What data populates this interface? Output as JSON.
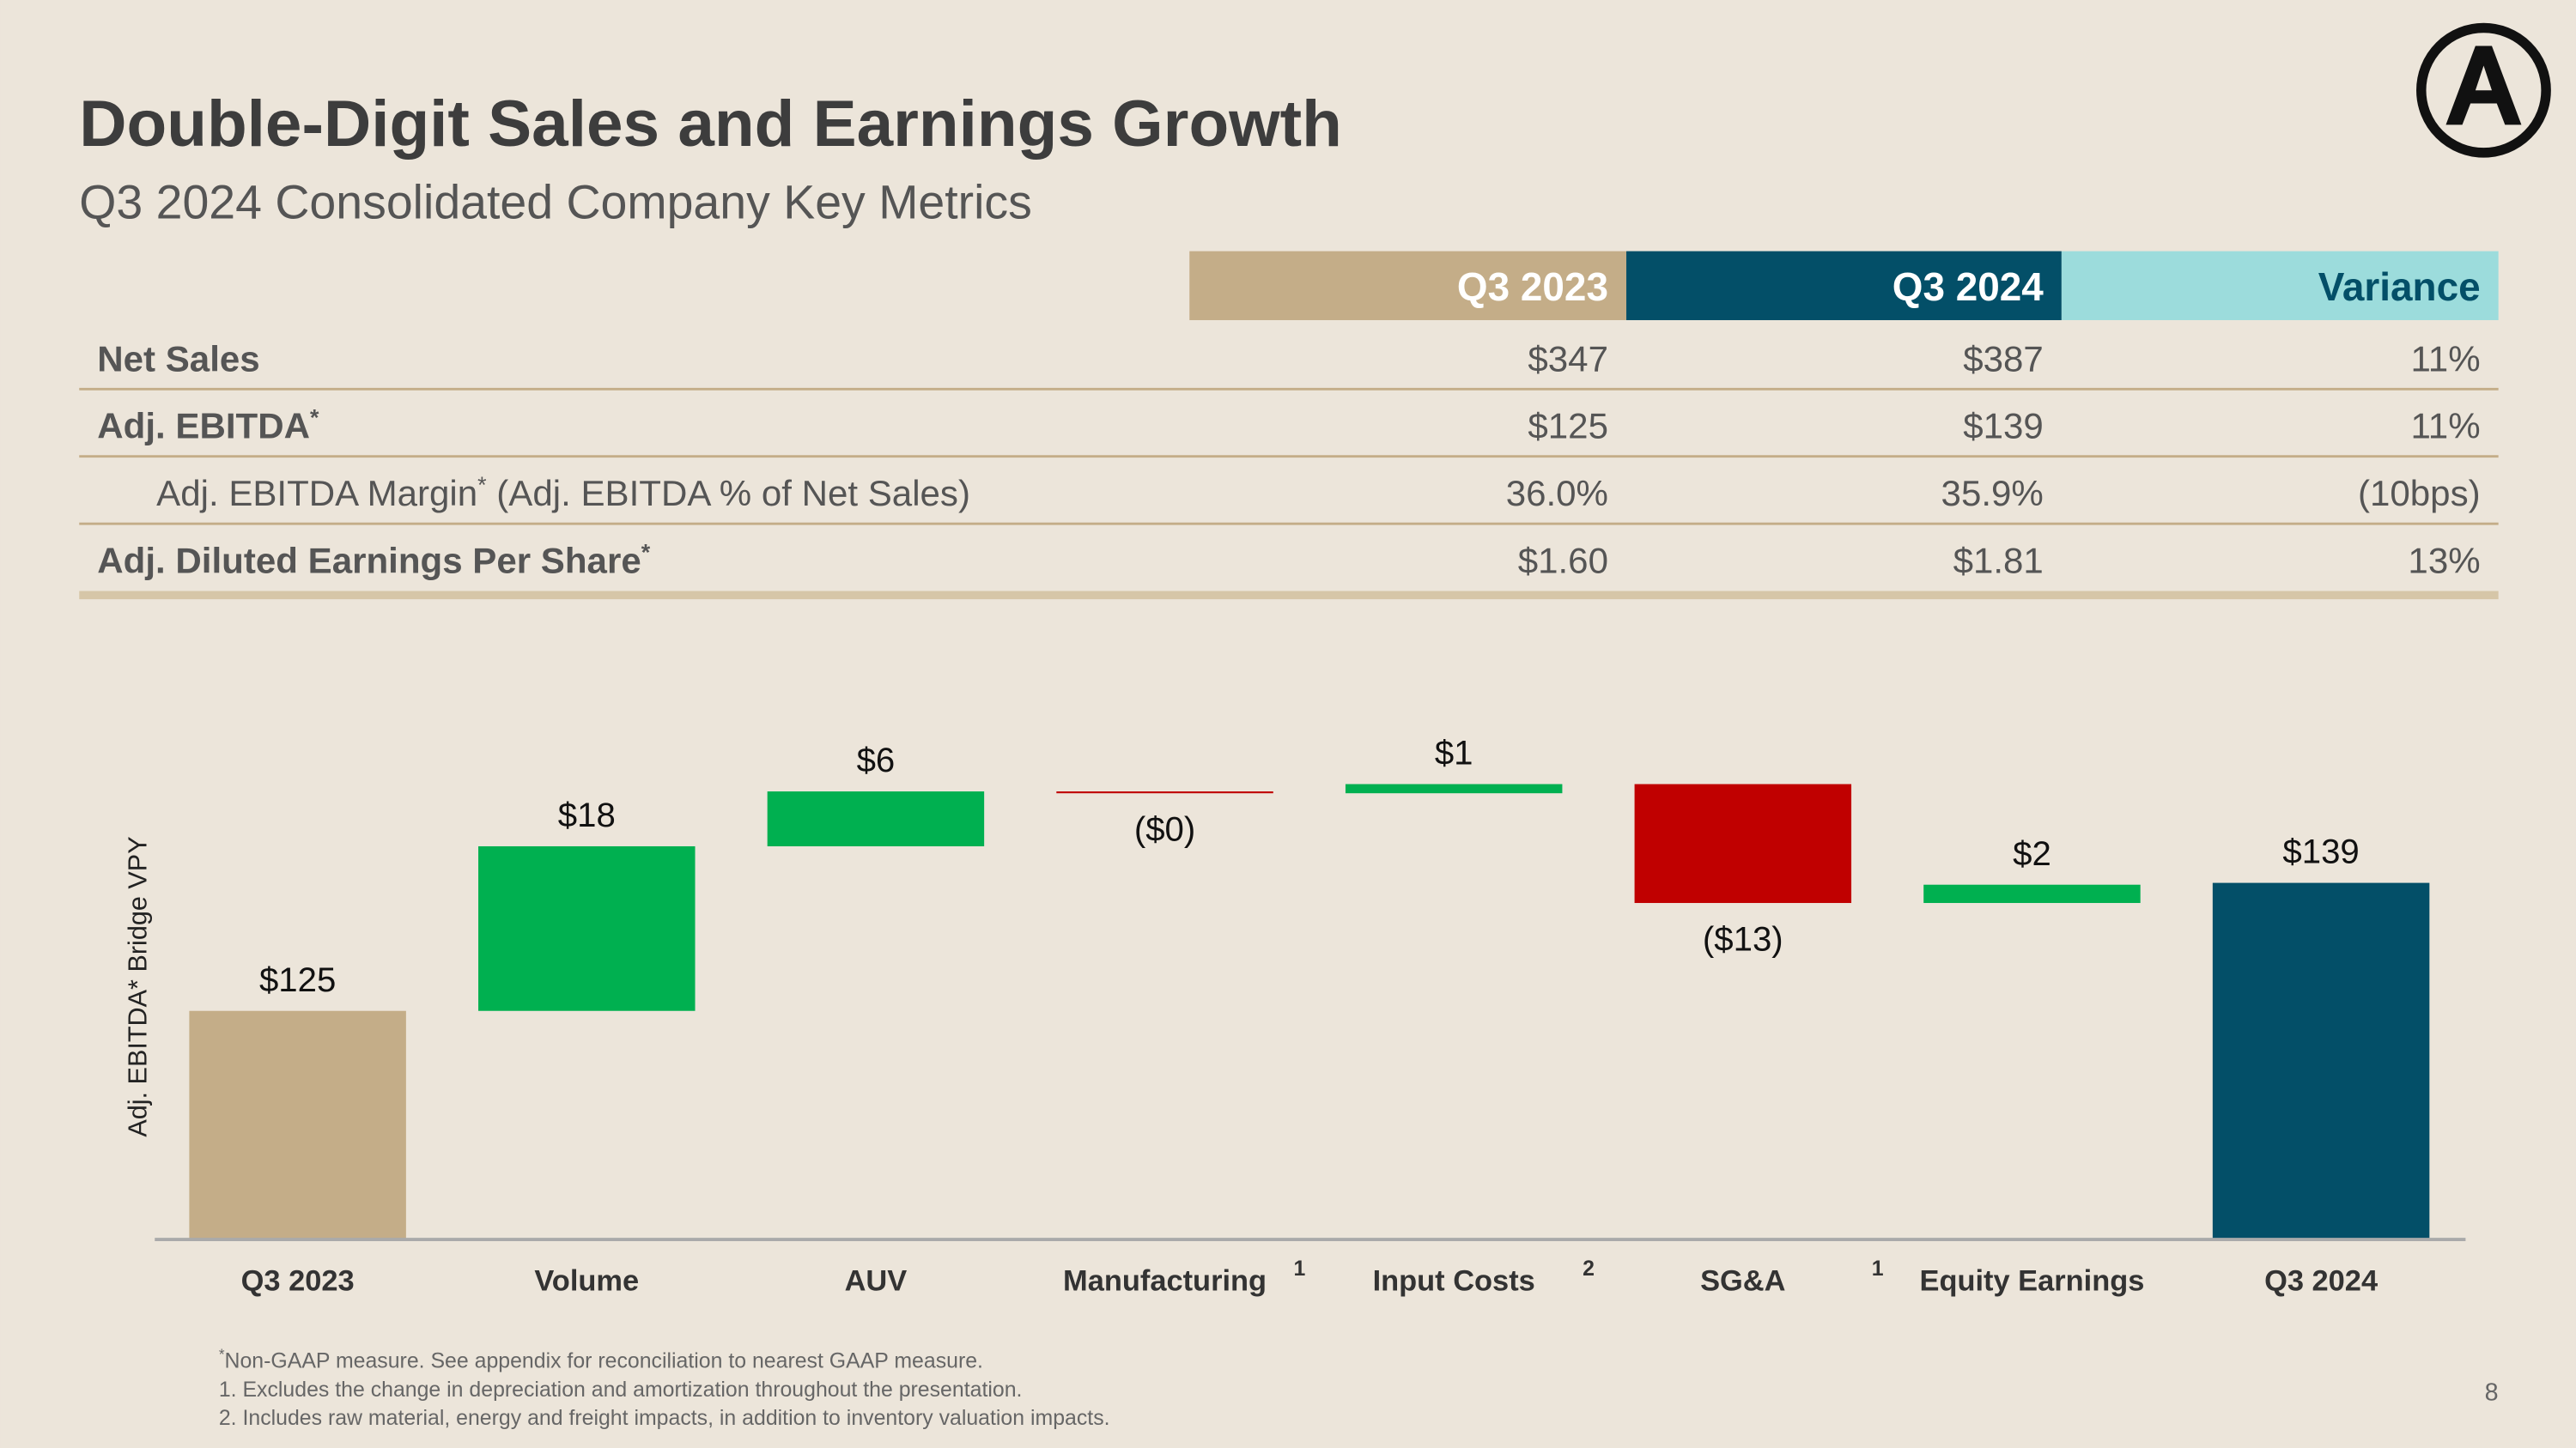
{
  "header": {
    "title": "Double-Digit Sales and Earnings Growth",
    "subtitle": "Q3 2024 Consolidated Company Key Metrics"
  },
  "table": {
    "columns": [
      "Q3 2023",
      "Q3 2024",
      "Variance"
    ],
    "rows": [
      {
        "label": "Net Sales",
        "cells": [
          "$347",
          "$387",
          "11%"
        ]
      },
      {
        "label": "Adj. EBITDA",
        "note": "*",
        "cells": [
          "$125",
          "$139",
          "11%"
        ]
      },
      {
        "label": "Adj. EBITDA Margin",
        "note": "*",
        "label_suffix": " (Adj. EBITDA % of Net Sales)",
        "cells": [
          "36.0%",
          "35.9%",
          "(10bps)"
        ]
      },
      {
        "label": "Adj. Diluted Earnings Per Share",
        "note": "*",
        "cells": [
          "$1.60",
          "$1.81",
          "13%"
        ]
      }
    ]
  },
  "chart_data": {
    "type": "waterfall",
    "y_label": "Adj. EBITDA* Bridge VPY",
    "categories": [
      "Q3 2023",
      "Volume",
      "AUV",
      "Manufacturing",
      "Input Costs",
      "SG&A",
      "Equity Earnings",
      "Q3 2024"
    ],
    "category_notes": [
      null,
      null,
      null,
      "1",
      "2",
      "1",
      null,
      null
    ],
    "measure": [
      "total",
      "relative",
      "relative",
      "relative",
      "relative",
      "relative",
      "relative",
      "total"
    ],
    "values": [
      125,
      18,
      6,
      -0.2,
      1,
      -13,
      2,
      139
    ],
    "value_labels": [
      "$125",
      "$18",
      "$6",
      "($0)",
      "$1",
      "($13)",
      "$2",
      "$139"
    ],
    "colors": [
      "#c4ad88",
      "#00b050",
      "#00b050",
      "#c00000",
      "#00b050",
      "#c00000",
      "#00b050",
      "#034f68"
    ],
    "ylim": [
      100,
      150
    ]
  },
  "footnotes": [
    {
      "mark": "*",
      "text": "Non-GAAP measure. See appendix for reconciliation to nearest GAAP measure."
    },
    {
      "text": "1. Excludes the change in depreciation and amortization throughout the presentation."
    },
    {
      "text": "2. Includes raw material, energy and freight impacts, in addition to inventory valuation impacts."
    }
  ],
  "page_number": "8"
}
